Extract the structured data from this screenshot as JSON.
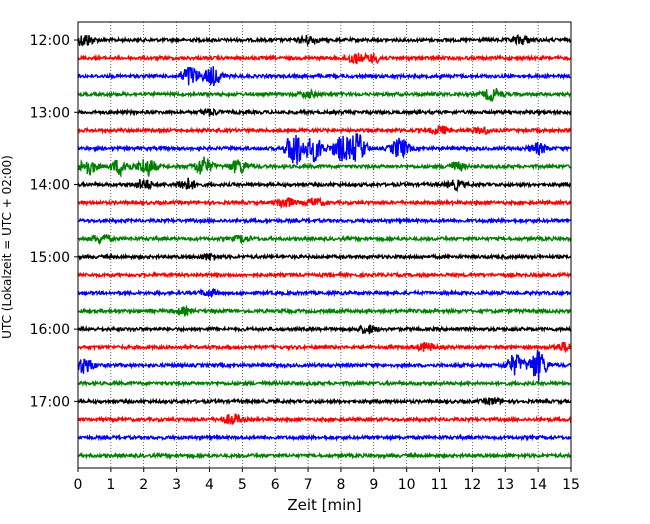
{
  "chart_data": {
    "type": "line",
    "chart_kind": "helicorder",
    "xlabel": "Zeit  [min]",
    "ylabel": "UTC (Lokalzeit = UTC + 02:00)",
    "xlim": [
      0,
      15
    ],
    "x_ticks": [
      "0",
      "1",
      "2",
      "3",
      "4",
      "5",
      "6",
      "7",
      "8",
      "9",
      "10",
      "11",
      "12",
      "13",
      "14",
      "15"
    ],
    "y_tick_labels": [
      "12:00",
      "13:00",
      "14:00",
      "15:00",
      "16:00",
      "17:00"
    ],
    "minutes_per_trace": 15,
    "trace_colors": [
      "#000000",
      "#ff0000",
      "#0000ff",
      "#008000"
    ],
    "grid": "vertical dotted at each minute",
    "trace_count": 24,
    "traces": [
      {
        "start": "12:00",
        "color": "#000000",
        "bursts": [
          {
            "t": 0.2,
            "amp": 6
          },
          {
            "t": 7.0,
            "amp": 4
          },
          {
            "t": 13.5,
            "amp": 4
          }
        ]
      },
      {
        "start": "12:15",
        "color": "#ff0000",
        "bursts": [
          {
            "t": 8.4,
            "amp": 5
          },
          {
            "t": 9.0,
            "amp": 4
          }
        ]
      },
      {
        "start": "12:30",
        "color": "#0000ff",
        "bursts": [
          {
            "t": 3.4,
            "amp": 10
          },
          {
            "t": 4.1,
            "amp": 9
          }
        ]
      },
      {
        "start": "12:45",
        "color": "#008000",
        "bursts": [
          {
            "t": 7.0,
            "amp": 3
          },
          {
            "t": 12.6,
            "amp": 6
          }
        ]
      },
      {
        "start": "13:00",
        "color": "#000000",
        "bursts": [
          {
            "t": 4.0,
            "amp": 3
          }
        ]
      },
      {
        "start": "13:15",
        "color": "#ff0000",
        "bursts": [
          {
            "t": 11.0,
            "amp": 4
          },
          {
            "t": 12.3,
            "amp": 3
          }
        ]
      },
      {
        "start": "13:30",
        "color": "#0000ff",
        "bursts": [
          {
            "t": 6.6,
            "amp": 18
          },
          {
            "t": 7.2,
            "amp": 12
          },
          {
            "t": 8.0,
            "amp": 12
          },
          {
            "t": 8.5,
            "amp": 14
          },
          {
            "t": 9.8,
            "amp": 10
          },
          {
            "t": 14.0,
            "amp": 5
          }
        ]
      },
      {
        "start": "13:45",
        "color": "#008000",
        "bursts": [
          {
            "t": 0.3,
            "amp": 8
          },
          {
            "t": 1.3,
            "amp": 8
          },
          {
            "t": 2.1,
            "amp": 9
          },
          {
            "t": 3.8,
            "amp": 9
          },
          {
            "t": 4.9,
            "amp": 7
          },
          {
            "t": 11.5,
            "amp": 4
          }
        ]
      },
      {
        "start": "14:00",
        "color": "#000000",
        "bursts": [
          {
            "t": 2.0,
            "amp": 5
          },
          {
            "t": 3.3,
            "amp": 6
          },
          {
            "t": 11.5,
            "amp": 4
          }
        ]
      },
      {
        "start": "14:15",
        "color": "#ff0000",
        "bursts": [
          {
            "t": 6.3,
            "amp": 5
          },
          {
            "t": 7.2,
            "amp": 4
          }
        ]
      },
      {
        "start": "14:30",
        "color": "#0000ff",
        "bursts": []
      },
      {
        "start": "14:45",
        "color": "#008000",
        "bursts": [
          {
            "t": 0.7,
            "amp": 4
          },
          {
            "t": 5.0,
            "amp": 3
          }
        ]
      },
      {
        "start": "15:00",
        "color": "#000000",
        "bursts": [
          {
            "t": 4.0,
            "amp": 3
          }
        ]
      },
      {
        "start": "15:15",
        "color": "#ff0000",
        "bursts": []
      },
      {
        "start": "15:30",
        "color": "#0000ff",
        "bursts": [
          {
            "t": 4.0,
            "amp": 3
          }
        ]
      },
      {
        "start": "15:45",
        "color": "#008000",
        "bursts": [
          {
            "t": 3.2,
            "amp": 3
          }
        ]
      },
      {
        "start": "16:00",
        "color": "#000000",
        "bursts": [
          {
            "t": 8.8,
            "amp": 4
          }
        ]
      },
      {
        "start": "16:15",
        "color": "#ff0000",
        "bursts": [
          {
            "t": 10.6,
            "amp": 4
          },
          {
            "t": 14.8,
            "amp": 4
          }
        ]
      },
      {
        "start": "16:30",
        "color": "#0000ff",
        "bursts": [
          {
            "t": 0.2,
            "amp": 8
          },
          {
            "t": 13.3,
            "amp": 10
          },
          {
            "t": 14.0,
            "amp": 15
          }
        ]
      },
      {
        "start": "16:45",
        "color": "#008000",
        "bursts": []
      },
      {
        "start": "17:00",
        "color": "#000000",
        "bursts": [
          {
            "t": 12.6,
            "amp": 3
          }
        ]
      },
      {
        "start": "17:15",
        "color": "#ff0000",
        "bursts": [
          {
            "t": 4.7,
            "amp": 5
          }
        ]
      },
      {
        "start": "17:30",
        "color": "#0000ff",
        "bursts": []
      },
      {
        "start": "17:45",
        "color": "#008000",
        "bursts": []
      }
    ]
  }
}
